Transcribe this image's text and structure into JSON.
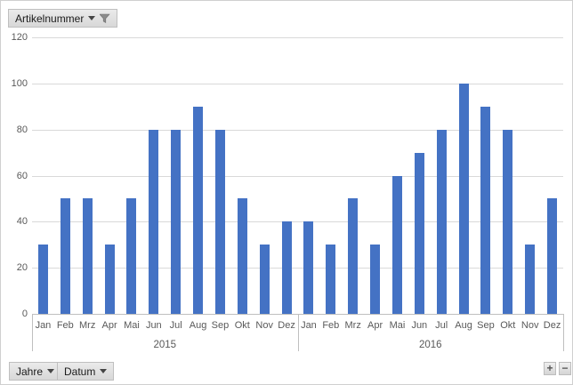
{
  "chart": {
    "filter_button": {
      "label": "Artikelnummer"
    },
    "axis_field_buttons": [
      {
        "label": "Jahre"
      },
      {
        "label": "Datum"
      }
    ],
    "drill_buttons": {
      "expand": "+",
      "collapse": "−"
    },
    "colors": {
      "bar": "#4472C4",
      "gridline": "#D9D9D9",
      "axis_line": "#BFBFBF",
      "label_text": "#595959"
    }
  },
  "chart_data": {
    "type": "bar",
    "title": "",
    "xlabel": "",
    "ylabel": "",
    "ylim": [
      0,
      120
    ],
    "ytick_interval": 20,
    "yticks": [
      0,
      20,
      40,
      60,
      80,
      100,
      120
    ],
    "grid": "horizontal",
    "legend": "none",
    "groups": [
      {
        "label": "2015",
        "categories": [
          "Jan",
          "Feb",
          "Mrz",
          "Apr",
          "Mai",
          "Jun",
          "Jul",
          "Aug",
          "Sep",
          "Okt",
          "Nov",
          "Dez"
        ],
        "values": [
          30,
          50,
          50,
          30,
          50,
          80,
          80,
          90,
          80,
          50,
          30,
          40
        ]
      },
      {
        "label": "2016",
        "categories": [
          "Jan",
          "Feb",
          "Mrz",
          "Apr",
          "Mai",
          "Jun",
          "Jul",
          "Aug",
          "Sep",
          "Okt",
          "Nov",
          "Dez"
        ],
        "values": [
          40,
          30,
          50,
          30,
          60,
          70,
          80,
          100,
          90,
          80,
          30,
          50
        ]
      }
    ]
  }
}
